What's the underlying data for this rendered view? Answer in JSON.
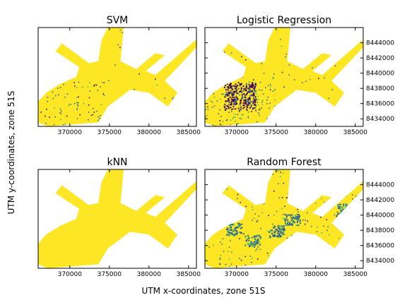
{
  "figure": {
    "xlabel": "UTM x-coordinates, zone 51S",
    "ylabel": "UTM y-coordinates, zone 51S"
  },
  "chart_data": {
    "type": "heatmap",
    "description_of_axes": "shared across four panels",
    "xlim": [
      366000,
      386000
    ],
    "ylim": [
      8433000,
      8446000
    ],
    "xticks": [
      "370000",
      "375000",
      "380000",
      "385000"
    ],
    "yticks": [
      "8434000",
      "8436000",
      "8438000",
      "8440000",
      "8442000",
      "8444000"
    ],
    "colormap": [
      "#440154",
      "#31688e",
      "#35b779",
      "#fde725"
    ],
    "panels": [
      {
        "title": "SVM",
        "dominant": "#fde725",
        "speckle": 0.1,
        "dark_patch": false,
        "blue_patches": false
      },
      {
        "title": "Logistic Regression",
        "dominant": "#fde725",
        "speckle": 0.16,
        "dark_patch": true,
        "blue_patches": false
      },
      {
        "title": "kNN",
        "dominant": "#fde725",
        "speckle": 0.0,
        "dark_patch": false,
        "blue_patches": false
      },
      {
        "title": "Random Forest",
        "dominant": "#fde725",
        "speckle": 0.22,
        "dark_patch": false,
        "blue_patches": true
      }
    ]
  }
}
